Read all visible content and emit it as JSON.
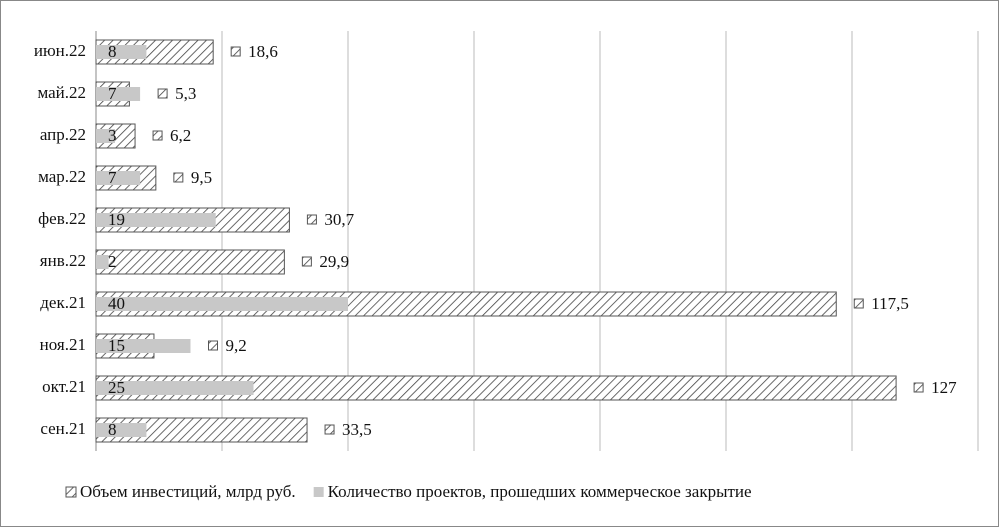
{
  "chart_data": {
    "type": "bar",
    "orientation": "horizontal",
    "categories": [
      "сен.21",
      "окт.21",
      "ноя.21",
      "дек.21",
      "янв.22",
      "фев.22",
      "мар.22",
      "апр.22",
      "май.22",
      "июн.22"
    ],
    "series": [
      {
        "name": "Объем инвестиций, млрд руб.",
        "pattern": "hatch",
        "color": "#444444",
        "values": [
          33.5,
          127,
          9.2,
          117.5,
          29.9,
          30.7,
          9.5,
          6.2,
          5.3,
          18.6
        ],
        "value_labels": [
          "33,5",
          "127",
          "9,2",
          "117,5",
          "29,9",
          "30,7",
          "9,5",
          "6,2",
          "5,3",
          "18,6"
        ]
      },
      {
        "name": "Количество проектов, прошедших коммерческое закрытие",
        "color": "#c8c8c8",
        "values": [
          8,
          25,
          15,
          40,
          2,
          19,
          7,
          3,
          7,
          8
        ]
      }
    ],
    "xlim": [
      0,
      140
    ],
    "xticks": [
      0,
      20,
      40,
      60,
      80,
      100,
      120,
      140
    ],
    "grid": true,
    "legend": "bottom"
  }
}
